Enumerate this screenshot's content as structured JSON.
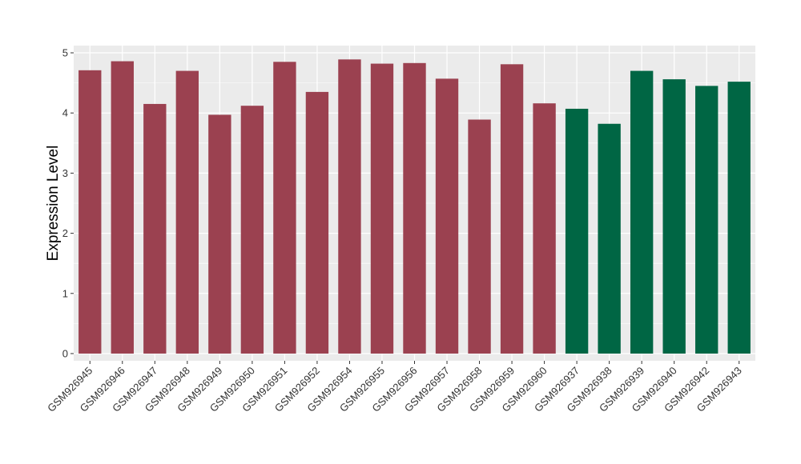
{
  "chart_data": {
    "type": "bar",
    "title": "",
    "xlabel": "",
    "ylabel": "Expression Level",
    "ylim": [
      -0.12,
      5.12
    ],
    "yticks": [
      0,
      1,
      2,
      3,
      4,
      5
    ],
    "grid": true,
    "legend": "none",
    "panel_background": "#EBEBEB",
    "gridline_color": "#FFFFFF",
    "categories": [
      "GSM926945",
      "GSM926946",
      "GSM926947",
      "GSM926948",
      "GSM926949",
      "GSM926950",
      "GSM926951",
      "GSM926952",
      "GSM926954",
      "GSM926955",
      "GSM926956",
      "GSM926957",
      "GSM926958",
      "GSM926959",
      "GSM926960",
      "GSM926937",
      "GSM926938",
      "GSM926939",
      "GSM926940",
      "GSM926942",
      "GSM926943"
    ],
    "values": [
      4.71,
      4.86,
      4.15,
      4.7,
      3.97,
      4.12,
      4.85,
      4.35,
      4.89,
      4.82,
      4.83,
      4.57,
      3.89,
      4.81,
      4.16,
      4.07,
      3.82,
      4.7,
      4.56,
      4.45,
      4.52
    ],
    "colors": [
      "#9B4150",
      "#9B4150",
      "#9B4150",
      "#9B4150",
      "#9B4150",
      "#9B4150",
      "#9B4150",
      "#9B4150",
      "#9B4150",
      "#9B4150",
      "#9B4150",
      "#9B4150",
      "#9B4150",
      "#9B4150",
      "#9B4150",
      "#006644",
      "#006644",
      "#006644",
      "#006644",
      "#006644",
      "#006644"
    ]
  }
}
